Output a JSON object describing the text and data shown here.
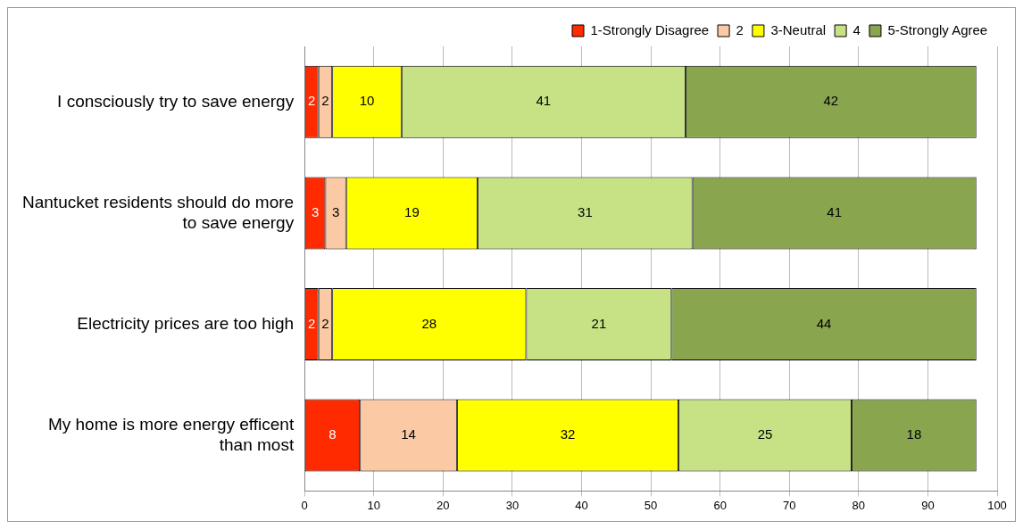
{
  "chart_data": {
    "type": "bar",
    "orientation": "horizontal",
    "stacked": true,
    "categories": [
      "I consciously try to save energy",
      "Nantucket residents should do more to save energy",
      "Electricity prices are too high",
      "My home is more energy efficent than most"
    ],
    "series": [
      {
        "name": "1-Strongly Disagree",
        "color": "#ff2a00",
        "values": [
          2,
          3,
          2,
          8
        ]
      },
      {
        "name": "2",
        "color": "#fbc9a4",
        "values": [
          2,
          3,
          2,
          14
        ]
      },
      {
        "name": "3-Neutral",
        "color": "#ffff00",
        "values": [
          10,
          19,
          28,
          32
        ]
      },
      {
        "name": "4",
        "color": "#c6e285",
        "values": [
          41,
          31,
          21,
          25
        ]
      },
      {
        "name": "5-Strongly Agree",
        "color": "#89a54e",
        "values": [
          42,
          41,
          44,
          18
        ]
      }
    ],
    "xlim": [
      0,
      100
    ],
    "xticks": [
      0,
      10,
      20,
      30,
      40,
      50,
      60,
      70,
      80,
      90,
      100
    ],
    "grid": "x",
    "legend": "top right",
    "data_labels": true
  }
}
